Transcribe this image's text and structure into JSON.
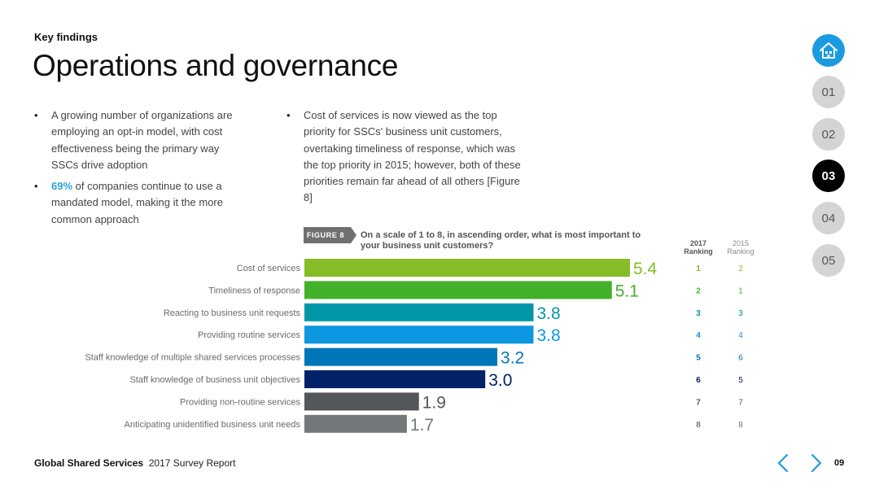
{
  "header": {
    "kicker": "Key findings",
    "title": "Operations and governance"
  },
  "bullets_col1": [
    {
      "highlight": "",
      "text": "A growing number of organizations are employing an opt-in model, with cost effectiveness being the primary way SSCs drive adoption"
    },
    {
      "highlight": "69%",
      "text": " of companies continue to use a mandated model, making it the more common approach"
    }
  ],
  "bullets_col2": [
    {
      "text": "Cost of services is now viewed as the top priority for SSCs' business unit customers, overtaking timeliness of response, which was the top priority in 2015; however, both of these priorities remain far ahead of all others [Figure 8]"
    }
  ],
  "figure": {
    "badge": "FIGURE 8",
    "question": "On a scale of 1 to 8, in ascending order, what is most important to your business unit customers?",
    "rank_head_2017": [
      "2017",
      "Ranking"
    ],
    "rank_head_2015": [
      "2015",
      "Ranking"
    ]
  },
  "chart_data": {
    "type": "bar",
    "orientation": "horizontal",
    "categories": [
      "Cost of services",
      "Timeliness of response",
      "Reacting to business unit requests",
      "Providing routine services",
      "Staff knowledge of multiple shared services processes",
      "Staff knowledge of business unit objectives",
      "Providing non-routine services",
      "Anticipating unidentified business unit needs"
    ],
    "values": [
      5.4,
      5.1,
      3.8,
      3.8,
      3.2,
      3.0,
      1.9,
      1.7
    ],
    "value_labels": [
      "5.4",
      "5.1",
      "3.8",
      "3.8",
      "3.2",
      "3.0",
      "1.9",
      "1.7"
    ],
    "colors": [
      "#86bc25",
      "#43b02a",
      "#0097a9",
      "#0d97e0",
      "#0076b8",
      "#012169",
      "#53565a",
      "#75787b"
    ],
    "ranking_2017": [
      1,
      2,
      3,
      4,
      5,
      6,
      7,
      8
    ],
    "ranking_2015": [
      2,
      1,
      3,
      4,
      6,
      5,
      7,
      8
    ],
    "xlim": [
      0,
      5.4
    ]
  },
  "nav": {
    "home_icon": "home-icon",
    "sections": [
      "01",
      "02",
      "03",
      "04",
      "05"
    ],
    "active": "03"
  },
  "footer": {
    "brand": "Global Shared Services",
    "report": "2017 Survey Report",
    "page_number": "09",
    "prev_icon": "chevron-left-icon",
    "next_icon": "chevron-right-icon"
  }
}
